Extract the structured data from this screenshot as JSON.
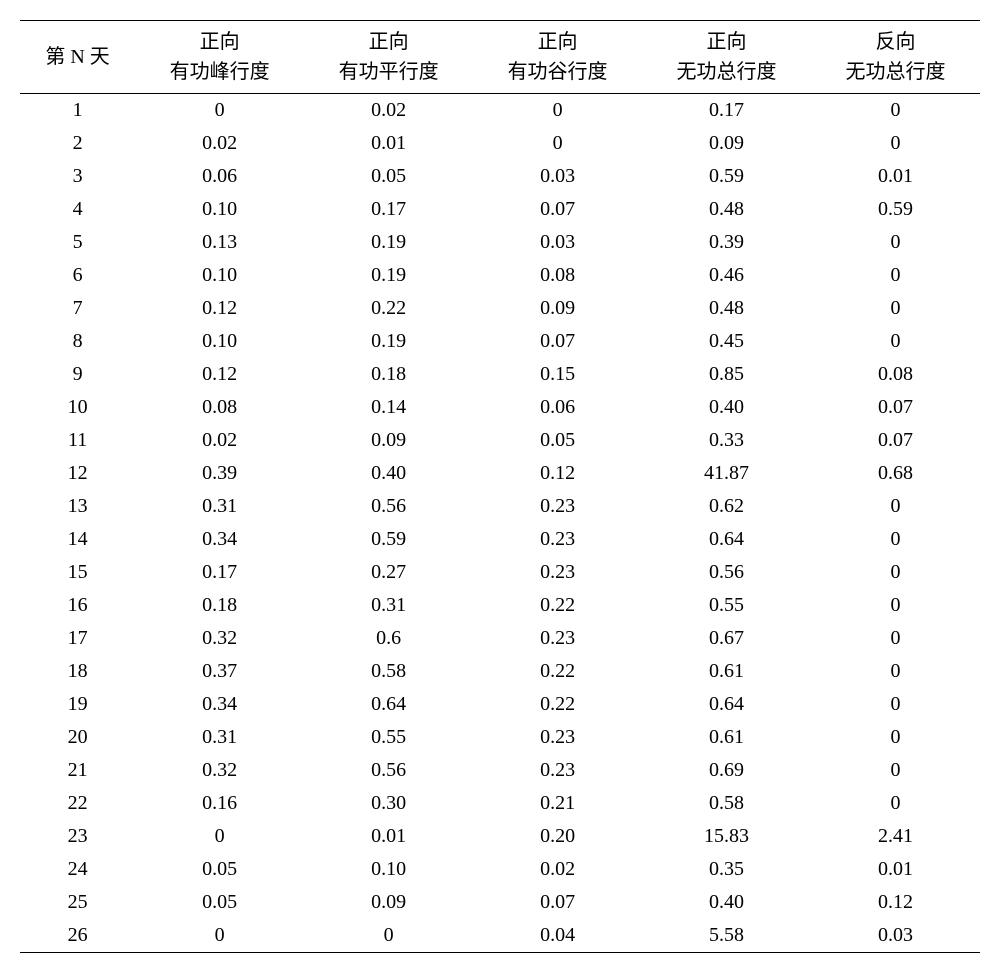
{
  "table": {
    "headers": {
      "col1": "第 N 天",
      "col2_line1": "正向",
      "col2_line2": "有功峰行度",
      "col3_line1": "正向",
      "col3_line2": "有功平行度",
      "col4_line1": "正向",
      "col4_line2": "有功谷行度",
      "col5_line1": "正向",
      "col5_line2": "无功总行度",
      "col6_line1": "反向",
      "col6_line2": "无功总行度"
    },
    "rows": [
      {
        "day": "1",
        "c1": "0",
        "c2": "0.02",
        "c3": "0",
        "c4": "0.17",
        "c5": "0"
      },
      {
        "day": "2",
        "c1": "0.02",
        "c2": "0.01",
        "c3": "0",
        "c4": "0.09",
        "c5": "0"
      },
      {
        "day": "3",
        "c1": "0.06",
        "c2": "0.05",
        "c3": "0.03",
        "c4": "0.59",
        "c5": "0.01"
      },
      {
        "day": "4",
        "c1": "0.10",
        "c2": "0.17",
        "c3": "0.07",
        "c4": "0.48",
        "c5": "0.59"
      },
      {
        "day": "5",
        "c1": "0.13",
        "c2": "0.19",
        "c3": "0.03",
        "c4": "0.39",
        "c5": "0"
      },
      {
        "day": "6",
        "c1": "0.10",
        "c2": "0.19",
        "c3": "0.08",
        "c4": "0.46",
        "c5": "0"
      },
      {
        "day": "7",
        "c1": "0.12",
        "c2": "0.22",
        "c3": "0.09",
        "c4": "0.48",
        "c5": "0"
      },
      {
        "day": "8",
        "c1": "0.10",
        "c2": "0.19",
        "c3": "0.07",
        "c4": "0.45",
        "c5": "0"
      },
      {
        "day": "9",
        "c1": "0.12",
        "c2": "0.18",
        "c3": "0.15",
        "c4": "0.85",
        "c5": "0.08"
      },
      {
        "day": "10",
        "c1": "0.08",
        "c2": "0.14",
        "c3": "0.06",
        "c4": "0.40",
        "c5": "0.07"
      },
      {
        "day": "11",
        "c1": "0.02",
        "c2": "0.09",
        "c3": "0.05",
        "c4": "0.33",
        "c5": "0.07"
      },
      {
        "day": "12",
        "c1": "0.39",
        "c2": "0.40",
        "c3": "0.12",
        "c4": "41.87",
        "c5": "0.68"
      },
      {
        "day": "13",
        "c1": "0.31",
        "c2": "0.56",
        "c3": "0.23",
        "c4": "0.62",
        "c5": "0"
      },
      {
        "day": "14",
        "c1": "0.34",
        "c2": "0.59",
        "c3": "0.23",
        "c4": "0.64",
        "c5": "0"
      },
      {
        "day": "15",
        "c1": "0.17",
        "c2": "0.27",
        "c3": "0.23",
        "c4": "0.56",
        "c5": "0"
      },
      {
        "day": "16",
        "c1": "0.18",
        "c2": "0.31",
        "c3": "0.22",
        "c4": "0.55",
        "c5": "0"
      },
      {
        "day": "17",
        "c1": "0.32",
        "c2": "0.6",
        "c3": "0.23",
        "c4": "0.67",
        "c5": "0"
      },
      {
        "day": "18",
        "c1": "0.37",
        "c2": "0.58",
        "c3": "0.22",
        "c4": "0.61",
        "c5": "0"
      },
      {
        "day": "19",
        "c1": "0.34",
        "c2": "0.64",
        "c3": "0.22",
        "c4": "0.64",
        "c5": "0"
      },
      {
        "day": "20",
        "c1": "0.31",
        "c2": "0.55",
        "c3": "0.23",
        "c4": "0.61",
        "c5": "0"
      },
      {
        "day": "21",
        "c1": "0.32",
        "c2": "0.56",
        "c3": "0.23",
        "c4": "0.69",
        "c5": "0"
      },
      {
        "day": "22",
        "c1": "0.16",
        "c2": "0.30",
        "c3": "0.21",
        "c4": "0.58",
        "c5": "0"
      },
      {
        "day": "23",
        "c1": "0",
        "c2": "0.01",
        "c3": "0.20",
        "c4": "15.83",
        "c5": "2.41"
      },
      {
        "day": "24",
        "c1": "0.05",
        "c2": "0.10",
        "c3": "0.02",
        "c4": "0.35",
        "c5": "0.01"
      },
      {
        "day": "25",
        "c1": "0.05",
        "c2": "0.09",
        "c3": "0.07",
        "c4": "0.40",
        "c5": "0.12"
      },
      {
        "day": "26",
        "c1": "0",
        "c2": "0",
        "c3": "0.04",
        "c4": "5.58",
        "c5": "0.03"
      }
    ],
    "colors": {
      "background": "#ffffff",
      "text": "#000000",
      "border": "#000000"
    },
    "fontsize": {
      "header": 20,
      "body": 20
    }
  }
}
